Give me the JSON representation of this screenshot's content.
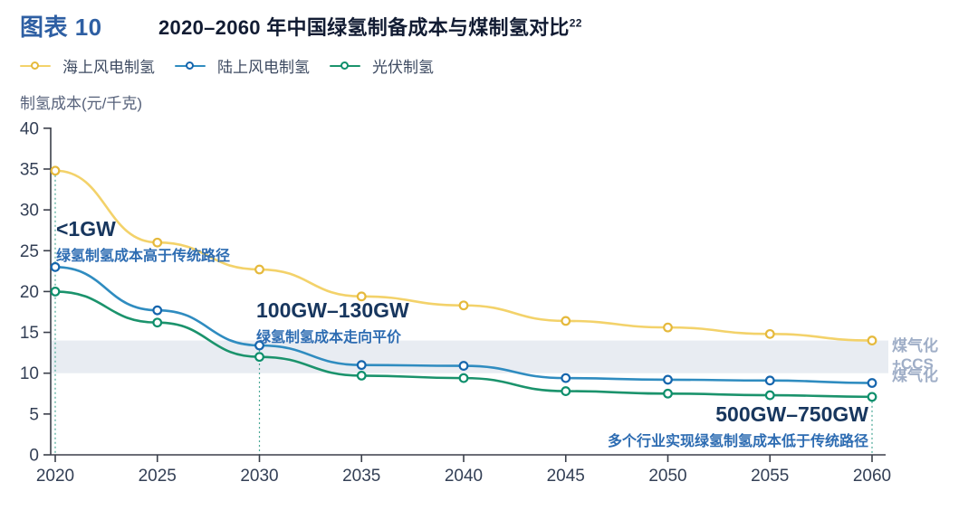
{
  "header": {
    "figure_label": "图表 10",
    "title": "2020–2060 年中国绿氢制备成本与煤制氢对比",
    "superscript": "22"
  },
  "legend": [
    {
      "id": "offshore-wind",
      "label": "海上风电制氢",
      "color": "#F3D26A",
      "ring": "#E5B93C"
    },
    {
      "id": "onshore-wind",
      "label": "陆上风电制氢",
      "color": "#2F8CC0",
      "ring": "#1565AD"
    },
    {
      "id": "solar-pv",
      "label": "光伏制氢",
      "color": "#1B936C",
      "ring": "#0E8F6C"
    }
  ],
  "axis": {
    "y_label": "制氢成本(元/千克)",
    "y_ticks": [
      0,
      5,
      10,
      15,
      20,
      25,
      30,
      35,
      40
    ],
    "color": "#3B3F4A",
    "tick_label_color": "#333F55"
  },
  "chart_data": {
    "type": "line",
    "title": "2020–2060 年中国绿氢制备成本与煤制氢对比",
    "ylabel": "制氢成本(元/千克)",
    "ylim": [
      0,
      40
    ],
    "x": [
      2020,
      2025,
      2030,
      2035,
      2040,
      2045,
      2050,
      2055,
      2060
    ],
    "series": [
      {
        "id": "offshore-wind",
        "name": "海上风电制氢",
        "color": "#F3D26A",
        "ring": "#E5B93C",
        "values": [
          34.8,
          26.0,
          22.7,
          19.4,
          18.3,
          16.4,
          15.6,
          14.8,
          14.0
        ]
      },
      {
        "id": "onshore-wind",
        "name": "陆上风电制氢",
        "color": "#2F8CC0",
        "ring": "#1565AD",
        "values": [
          23.0,
          17.7,
          13.4,
          11.0,
          10.9,
          9.4,
          9.2,
          9.1,
          8.8
        ]
      },
      {
        "id": "solar-pv",
        "name": "光伏制氢",
        "color": "#1B936C",
        "ring": "#0E8F6C",
        "values": [
          20.0,
          16.2,
          12.0,
          9.7,
          9.4,
          7.8,
          7.5,
          7.3,
          7.1
        ]
      }
    ],
    "reference_band": {
      "from": 10,
      "to": 14,
      "color": "#E8ECF2",
      "top_label": "煤气化+CCS",
      "bottom_label": "煤气化"
    },
    "dashed_guides": [
      {
        "x": 2020,
        "from_value": 34.8,
        "color": "#4AA896"
      },
      {
        "x": 2030,
        "from_value": 13.4,
        "color": "#4AA896"
      },
      {
        "x": 2060,
        "from_value": 7.1,
        "color": "#4AA896"
      }
    ],
    "legend_position": "top-left",
    "grid": false
  },
  "annotations": [
    {
      "title": "<1GW",
      "text": "绿氢制氢成本高于传统路径"
    },
    {
      "title": "100GW–130GW",
      "text": "绿氢制氢成本走向平价"
    },
    {
      "title": "500GW–750GW",
      "text": "多个行业实现绿氢制氢成本低于传统路径"
    }
  ]
}
